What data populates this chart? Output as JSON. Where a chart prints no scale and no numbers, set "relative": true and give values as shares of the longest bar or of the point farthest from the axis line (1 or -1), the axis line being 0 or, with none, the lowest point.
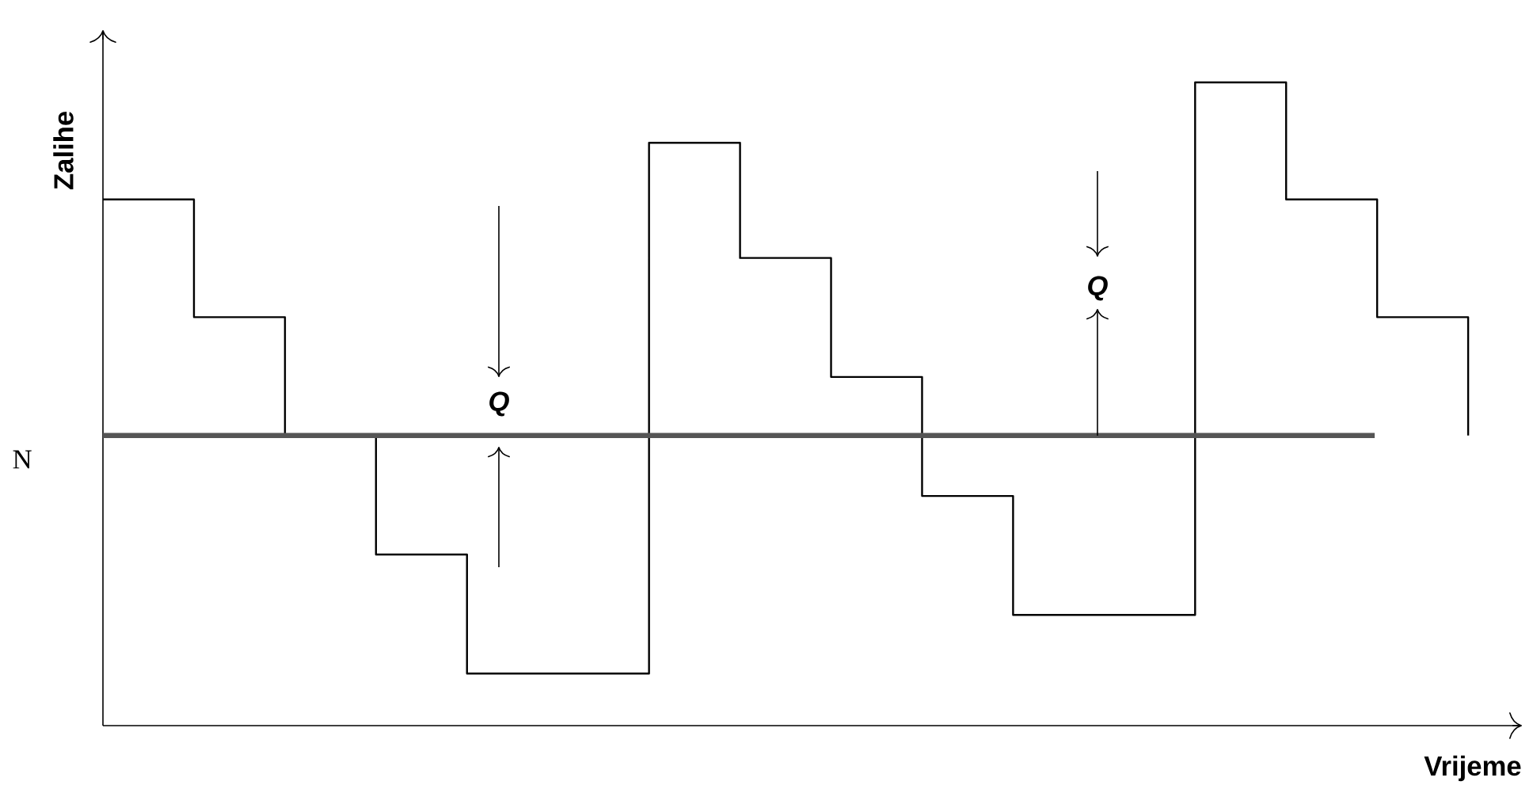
{
  "chart_data": {
    "type": "step",
    "xlabel": "Vrijeme",
    "ylabel": "Zalihe",
    "relative": true,
    "categories": [
      null,
      null,
      null,
      null,
      null,
      null,
      null,
      null,
      null,
      null,
      null,
      null,
      null,
      null,
      null,
      null
    ],
    "series": [
      {
        "color": "#000000",
        "values": [
          0.818,
          0.635,
          0.451,
          0.266,
          0.081,
          0.081,
          0.906,
          0.727,
          0.542,
          0.357,
          0.172,
          0.172,
          1,
          0.818,
          0.635,
          0.451
        ]
      }
    ],
    "ref_lines": [
      {
        "axis": "y",
        "value": 0.451,
        "label": "N",
        "color": "#555555"
      }
    ],
    "annotations": [
      "Q",
      "Q"
    ],
    "tick_labels": false
  }
}
